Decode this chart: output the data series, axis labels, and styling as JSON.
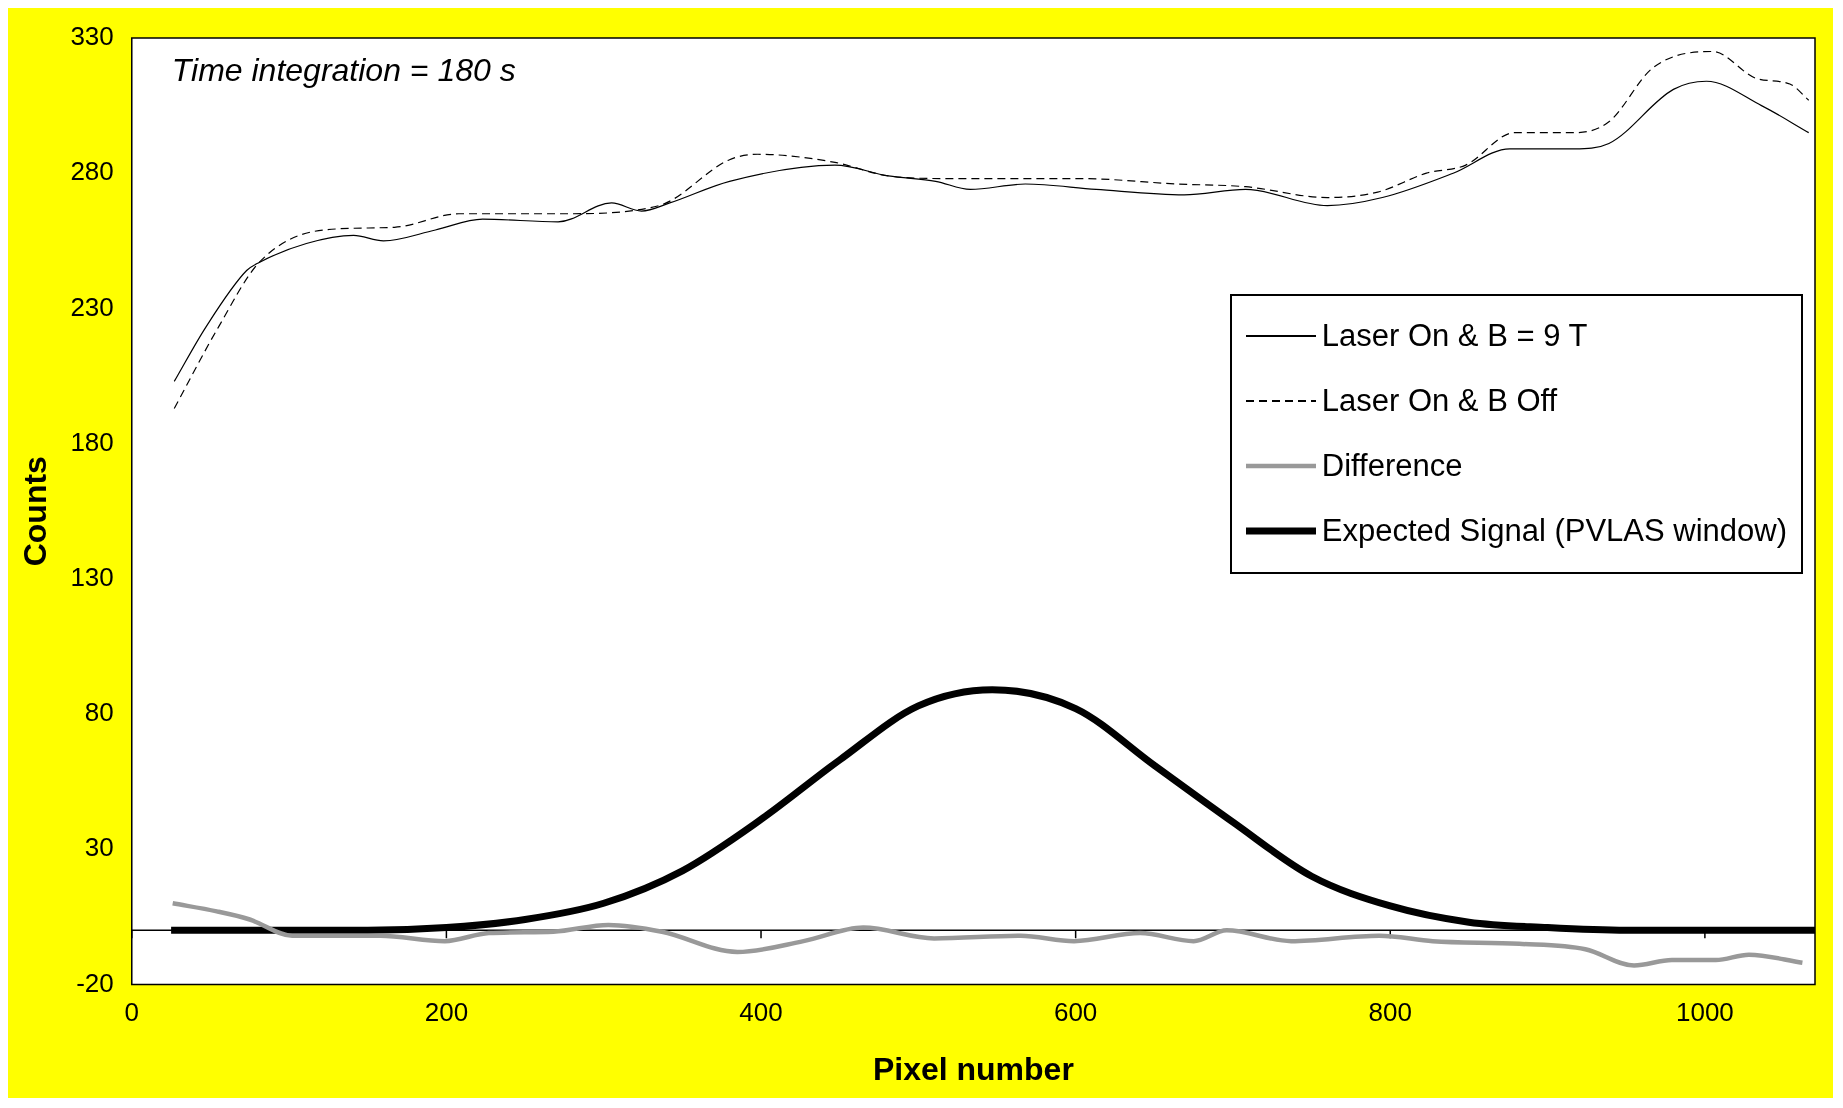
{
  "chart_data": {
    "type": "line",
    "xlabel": "Pixel number",
    "ylabel": "Counts",
    "annotations": [
      "Time integration = 180 s"
    ],
    "xlim": [
      0,
      1070
    ],
    "xticks": [
      0,
      200,
      400,
      600,
      800,
      1000
    ],
    "ylim": [
      -20,
      330
    ],
    "yticks": [
      -20,
      30,
      80,
      130,
      180,
      230,
      280,
      330
    ],
    "grid": false,
    "legend": "right",
    "marker": "none",
    "ref_lines": [
      {
        "axis": "y",
        "value": 0,
        "color": "#000000"
      }
    ],
    "series": [
      {
        "name": "Laser On & B = 9 T",
        "color": "#000000",
        "line_style": "solid",
        "x": [
          27,
          47,
          73,
          81,
          111,
          141,
          160,
          193,
          223,
          271,
          305,
          324,
          342,
          380,
          447,
          481,
          511,
          533,
          568,
          613,
          669,
          708,
          760,
          795,
          840,
          876,
          917,
          939,
          980,
          1001,
          1036,
          1066
        ],
        "values": [
          203,
          223,
          244,
          247,
          254,
          257,
          255,
          259,
          263,
          262,
          269,
          266,
          269,
          277,
          283,
          279,
          277,
          274,
          276,
          274,
          272,
          274,
          268,
          271,
          280,
          289,
          289,
          291,
          311,
          314,
          305,
          295
        ]
      },
      {
        "name": "Laser On & B Off",
        "color": "#000000",
        "line_style": "dashed",
        "x": [
          27,
          55,
          81,
          122,
          167,
          208,
          275,
          335,
          380,
          398,
          447,
          481,
          522,
          533,
          603,
          665,
          708,
          760,
          792,
          823,
          848,
          879,
          917,
          939,
          967,
          1005,
          1033,
          1054,
          1066
        ],
        "values": [
          193,
          223,
          247,
          259,
          260,
          265,
          265,
          268,
          285,
          287,
          284,
          279,
          278,
          278,
          278,
          276,
          275,
          271,
          273,
          280,
          283,
          295,
          295,
          299,
          319,
          325,
          315,
          313,
          307
        ]
      },
      {
        "name": "Difference",
        "color": "#999999",
        "line_style": "solid",
        "x": [
          26,
          54,
          75,
          102,
          158,
          199,
          227,
          268,
          303,
          337,
          385,
          427,
          465,
          510,
          565,
          599,
          641,
          675,
          696,
          737,
          793,
          827,
          882,
          924,
          955,
          979,
          1007,
          1028,
          1062
        ],
        "values": [
          10,
          7,
          4,
          -2,
          -2,
          -4,
          -1,
          -0.5,
          2,
          -0.5,
          -8,
          -4,
          1,
          -3,
          -2,
          -4,
          -1,
          -4,
          0,
          -4,
          -2,
          -4,
          -5,
          -7,
          -13,
          -11,
          -11,
          -9,
          -12
        ]
      },
      {
        "name": "Expected Signal (PVLAS window)",
        "color": "#000000",
        "line_style": "solid",
        "x": [
          25,
          150,
          200,
          250,
          300,
          350,
          400,
          450,
          500,
          547,
          600,
          650,
          700,
          750,
          800,
          850,
          900,
          950,
          1070
        ],
        "values": [
          0,
          0,
          1,
          4,
          10,
          22,
          41,
          63,
          83,
          89,
          82,
          61,
          40,
          20,
          9,
          3,
          1,
          0,
          0
        ]
      }
    ]
  }
}
